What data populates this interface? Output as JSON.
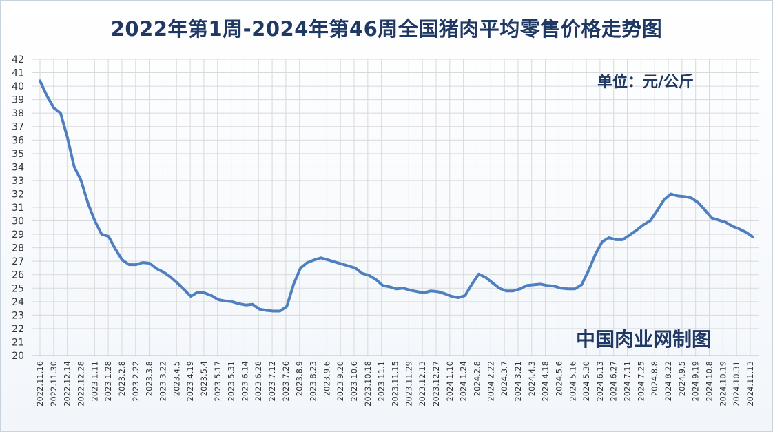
{
  "title": "2022年第1周-2024年第46周全国猪肉平均零售价格走势图",
  "unit": "单位：元/公斤",
  "source": "中国肉业网制图",
  "colors": {
    "line": "#4f7fbf",
    "grid": "#d9d9d9",
    "text": "#1f3864"
  },
  "chart_data": {
    "type": "line",
    "title": "2022年第1周-2024年第46周全国猪肉平均零售价格走势图",
    "xlabel": "",
    "ylabel": "",
    "ylim": [
      20,
      42
    ],
    "yticks": [
      20,
      21,
      22,
      23,
      24,
      25,
      26,
      27,
      28,
      29,
      30,
      31,
      32,
      33,
      34,
      35,
      36,
      37,
      38,
      39,
      40,
      41,
      42
    ],
    "grid": true,
    "legend": "none",
    "xticks": [
      "2022.11.16",
      "2022.11.30",
      "2022.12.14",
      "2022.12.28",
      "2023.1.11",
      "2023.1.28",
      "2023.2.8",
      "2023.2.22",
      "2023.3.8",
      "2023.3.22",
      "2023.4.5",
      "2023.4.19",
      "2023.5.4",
      "2023.5.17",
      "2023.5.31",
      "2023.6.14",
      "2023.6.28",
      "2023.7.12",
      "2023.7.26",
      "2023.8.9",
      "2023.8.23",
      "2023.9.6",
      "2023.9.20",
      "2023.10.6",
      "2023.10.18",
      "2023.11.1",
      "2023.11.15",
      "2023.11.29",
      "2023.12.13",
      "2023.12.27",
      "2024.1.10",
      "2024.1.24",
      "2024.2.8",
      "2024.2.22",
      "2024.3.7",
      "2024.3.21",
      "2024.4.3",
      "2024.4.18",
      "2024.5.6",
      "2024.5.16",
      "2024.5.30",
      "2024.6.13",
      "2024.6.27",
      "2024.7.11",
      "2024.7.25",
      "2024.8.8",
      "2024.8.22",
      "2024.9.5",
      "2024.9.19",
      "2024.10.8",
      "2024.10.19",
      "2024.10.31",
      "2024.11.13"
    ],
    "series": [
      {
        "values": [
          40.4,
          39.3,
          38.4,
          38.0,
          36.2,
          34.0,
          33.0,
          31.3,
          30.0,
          29.0,
          28.85,
          27.9,
          27.1,
          26.75,
          26.75,
          26.9,
          26.85,
          26.45,
          26.2,
          25.85,
          25.4,
          24.9,
          24.4,
          24.7,
          24.65,
          24.45,
          24.15,
          24.05,
          24.0,
          23.85,
          23.75,
          23.8,
          23.45,
          23.35,
          23.3,
          23.3,
          23.65,
          25.3,
          26.5,
          26.9,
          27.1,
          27.25,
          27.1,
          26.95,
          26.8,
          26.65,
          26.5,
          26.1,
          25.95,
          25.65,
          25.2,
          25.1,
          24.95,
          25.0,
          24.85,
          24.75,
          24.65,
          24.8,
          24.75,
          24.6,
          24.4,
          24.3,
          24.45,
          25.3,
          26.05,
          25.8,
          25.4,
          25.0,
          24.8,
          24.8,
          24.95,
          25.2,
          25.25,
          25.3,
          25.2,
          25.15,
          25.0,
          24.95,
          24.95,
          25.25,
          26.3,
          27.5,
          28.45,
          28.75,
          28.6,
          28.6,
          28.95,
          29.3,
          29.7,
          30.0,
          30.75,
          31.55,
          32.0,
          31.85,
          31.8,
          31.7,
          31.35,
          30.8,
          30.2,
          30.05,
          29.9,
          29.6,
          29.4,
          29.15,
          28.8
        ]
      }
    ]
  }
}
